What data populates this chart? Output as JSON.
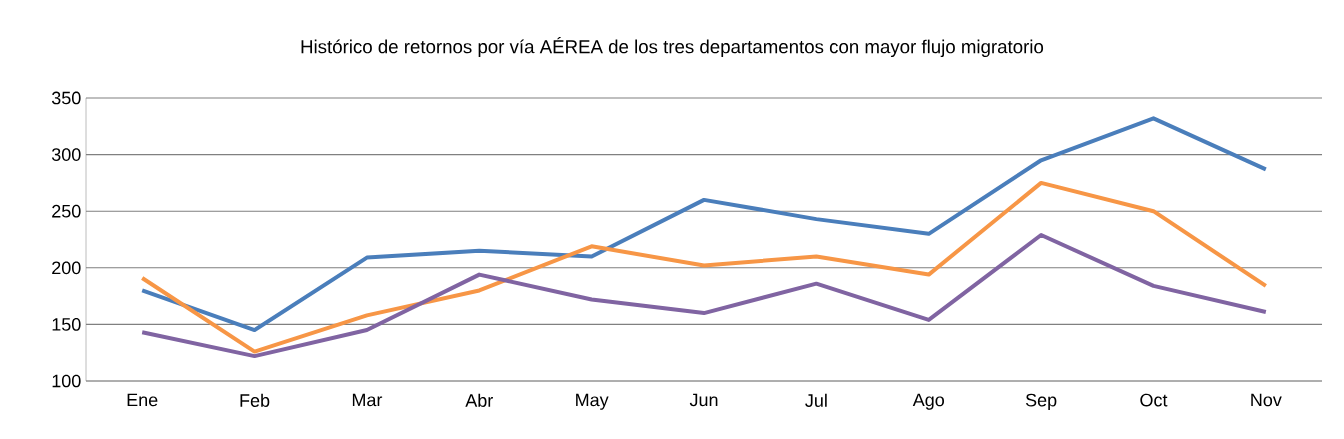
{
  "chart_data": {
    "type": "line",
    "title": "Histórico de retornos por vía AÉREA de los tres departamentos con mayor flujo migratorio",
    "categories": [
      "Ene",
      "Feb",
      "Mar",
      "Abr",
      "May",
      "Jun",
      "Jul",
      "Ago",
      "Sep",
      "Oct",
      "Nov"
    ],
    "series": [
      {
        "color": "#4a7ebb",
        "values": [
          180,
          145,
          209,
          215,
          210,
          260,
          243,
          230,
          295,
          332,
          287
        ]
      },
      {
        "color": "#f79646",
        "values": [
          191,
          126,
          158,
          180,
          219,
          202,
          210,
          194,
          275,
          250,
          184
        ]
      },
      {
        "color": "#8064a2",
        "values": [
          143,
          122,
          145,
          194,
          172,
          160,
          186,
          154,
          229,
          184,
          161
        ]
      }
    ],
    "ylim": [
      100,
      350
    ],
    "yticks": [
      100,
      150,
      200,
      250,
      300,
      350
    ],
    "grid": "y",
    "marker": "none",
    "line_style": "solid"
  }
}
